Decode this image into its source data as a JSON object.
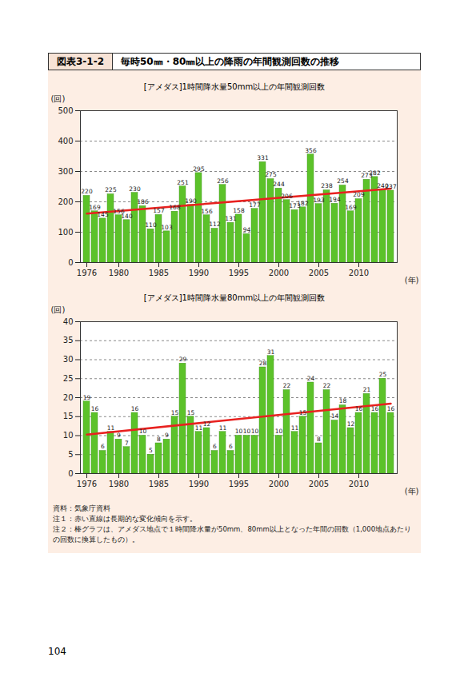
{
  "header": {
    "label": "図表3-1-2",
    "title": "毎時50㎜・80㎜以上の降雨の年間観測回数の推移"
  },
  "chart_data": [
    {
      "type": "bar",
      "title": "[アメダス]1時間降水量50mm以上の年間観測回数",
      "x": [
        1976,
        1977,
        1978,
        1979,
        1980,
        1981,
        1982,
        1983,
        1984,
        1985,
        1986,
        1987,
        1988,
        1989,
        1990,
        1991,
        1992,
        1993,
        1994,
        1995,
        1996,
        1997,
        1998,
        1999,
        2000,
        2001,
        2002,
        2003,
        2004,
        2005,
        2006,
        2007,
        2008,
        2009,
        2010,
        2011,
        2012,
        2013,
        2014
      ],
      "values": [
        220,
        169,
        145,
        225,
        156,
        140,
        230,
        186,
        110,
        157,
        103,
        168,
        251,
        190,
        295,
        156,
        112,
        256,
        131,
        158,
        94,
        177,
        331,
        275,
        244,
        206,
        173,
        182,
        356,
        193,
        238,
        194,
        254,
        169,
        209,
        273,
        282,
        240,
        237
      ],
      "color": "#5cc22a",
      "ylim": [
        0,
        500
      ],
      "yticks": [
        0,
        100,
        200,
        300,
        400,
        500
      ],
      "xticks": [
        1976,
        1980,
        1985,
        1990,
        1995,
        2000,
        2005,
        2010
      ],
      "ylabel": "(回)",
      "xlabel": "(年)",
      "grid": true,
      "data_labels": true
    },
    {
      "type": "bar",
      "title": "[アメダス]1時間降水量80mm以上の年間観測回数",
      "x": [
        1976,
        1977,
        1978,
        1979,
        1980,
        1981,
        1982,
        1983,
        1984,
        1985,
        1986,
        1987,
        1988,
        1989,
        1990,
        1991,
        1992,
        1993,
        1994,
        1995,
        1996,
        1997,
        1998,
        1999,
        2000,
        2001,
        2002,
        2003,
        2004,
        2005,
        2006,
        2007,
        2008,
        2009,
        2010,
        2011,
        2012,
        2013,
        2014
      ],
      "values": [
        19,
        16,
        6,
        11,
        9,
        7,
        16,
        10,
        5,
        8,
        9,
        15,
        29,
        15,
        11,
        12,
        6,
        11,
        6,
        10,
        10,
        10,
        28,
        31,
        10,
        22,
        11,
        15,
        24,
        8,
        22,
        14,
        18,
        12,
        16,
        21,
        16,
        25,
        16
      ],
      "color": "#5cc22a",
      "ylim": [
        0,
        40
      ],
      "yticks": [
        0,
        5,
        10,
        15,
        20,
        25,
        30,
        35,
        40
      ],
      "xticks": [
        1976,
        1980,
        1985,
        1990,
        1995,
        2000,
        2005,
        2010
      ],
      "ylabel": "(回)",
      "xlabel": "(年)",
      "grid": true,
      "data_labels": true
    }
  ],
  "notes": [
    "資料：気象庁資料",
    "注１：赤い直線は長期的な変化傾向を示す。",
    "注２：棒グラフは、アメダス地点で１時間降水量が50mm、80mm以上となった年間の回数（1,000地点あたりの回数に換算したもの）。"
  ],
  "page_number": "104"
}
